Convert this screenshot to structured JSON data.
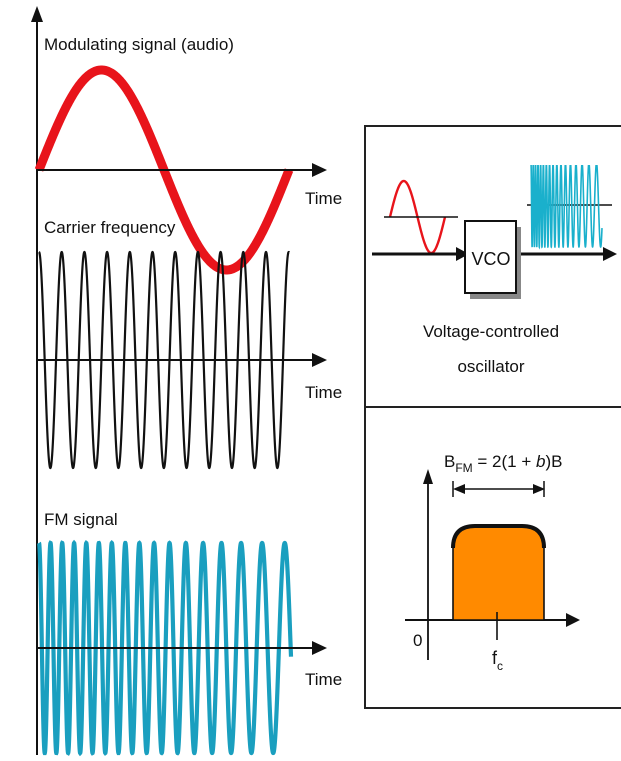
{
  "signals": {
    "modulating": {
      "label": "Modulating signal (audio)",
      "axis_label": "Time",
      "color": "#e8141b"
    },
    "carrier": {
      "label": "Carrier frequency",
      "axis_label": "Time",
      "color": "#111111"
    },
    "fm": {
      "label": "FM signal",
      "axis_label": "Time",
      "color": "#1a9fbf"
    }
  },
  "vco_panel": {
    "box_label": "VCO",
    "caption_line1": "Voltage-controlled",
    "caption_line2": "oscillator",
    "input_color": "#e8141b",
    "output_color": "#1ab0cc"
  },
  "spectrum_panel": {
    "formula": {
      "b": "B",
      "sub_fm": "FM",
      "eq": " = 2(1 + ",
      "beta": "b",
      "tail": ")B"
    },
    "origin_label": "0",
    "center": {
      "f": "f",
      "sub": "c"
    },
    "fill_color": "#ff8a00"
  },
  "colors": {
    "axis": "#111111",
    "panel_border": "#222222"
  }
}
